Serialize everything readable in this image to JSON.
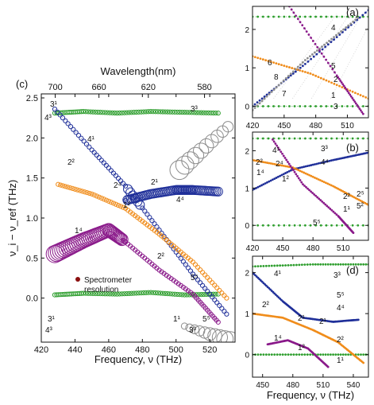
{
  "figure": {
    "wavelength_label": "Wavelength(nm)",
    "ylabel_main": "ν_i − ν_ref (THz)",
    "ylabel_parts": [
      "ν",
      "i",
      " - ν",
      "ref",
      " (THz)"
    ],
    "xlabel_c": "Frequency, ν (THz)",
    "xlabel_d": "Frequency, ν (THz)",
    "legend_text": [
      "Spectrometer",
      "resolution"
    ],
    "colors": {
      "green": "#2e9e2e",
      "blue": "#1f2f99",
      "orange": "#f08c1a",
      "purple": "#8a1a8a",
      "gray": "#8c8c8c",
      "legend_dot": "#8b0f0f"
    }
  },
  "chart_data": [
    {
      "panel": "(c)",
      "type": "scatter",
      "xlim": [
        420,
        535
      ],
      "ylim": [
        -0.55,
        2.55
      ],
      "x_ticks": [
        420,
        440,
        460,
        480,
        500,
        520
      ],
      "y_ticks": [
        0.0,
        0.5,
        1.0,
        1.5,
        2.0,
        2.5
      ],
      "y_tick_labels": [
        "0.0",
        "0.5",
        "1.0",
        "1.5",
        "2.0",
        "2.5"
      ],
      "top_axis": {
        "label": "Wavelength(nm)",
        "ticks": [
          700,
          660,
          620,
          580
        ]
      },
      "series": [
        {
          "color": "green",
          "points": [
            [
              428,
              0.04
            ],
            [
              445,
              0.06
            ],
            [
              465,
              0.05
            ],
            [
              485,
              0.07
            ],
            [
              505,
              0.04
            ],
            [
              525,
              0.05
            ]
          ]
        },
        {
          "color": "green",
          "points": [
            [
              428,
              2.31
            ],
            [
              445,
              2.33
            ],
            [
              465,
              2.31
            ],
            [
              485,
              2.33
            ],
            [
              505,
              2.32
            ],
            [
              525,
              2.31
            ]
          ]
        },
        {
          "color": "blue",
          "points": [
            [
              428,
              2.36
            ],
            [
              450,
              1.85
            ],
            [
              470,
              1.4
            ],
            [
              490,
              0.85
            ],
            [
              510,
              0.3
            ],
            [
              530,
              -0.2
            ]
          ]
        },
        {
          "color": "blue",
          "points": [
            [
              470,
              1.22
            ],
            [
              485,
              1.3
            ],
            [
              500,
              1.35
            ],
            [
              510,
              1.35
            ],
            [
              525,
              1.33
            ]
          ]
        },
        {
          "color": "orange",
          "points": [
            [
              430,
              1.42
            ],
            [
              450,
              1.3
            ],
            [
              470,
              1.12
            ],
            [
              490,
              0.8
            ],
            [
              510,
              0.45
            ],
            [
              530,
              0.0
            ]
          ]
        },
        {
          "color": "purple",
          "points": [
            [
              428,
              0.55
            ],
            [
              445,
              0.72
            ],
            [
              460,
              0.85
            ],
            [
              470,
              0.7
            ],
            [
              490,
              0.35
            ],
            [
              510,
              0.05
            ],
            [
              525,
              -0.3
            ]
          ]
        }
      ],
      "branch_labels": [
        "3¹",
        "4³",
        "4¹",
        "2²",
        "2⁴",
        "2¹",
        "4⁴",
        "1²",
        "1⁴",
        "2²",
        "3¹",
        "4³",
        "1¹",
        "3³",
        "3³",
        "5⁵",
        "5⁵"
      ],
      "legend": "Spectrometer resolution"
    },
    {
      "panel": "(a)",
      "type": "scatter",
      "xlim": [
        420,
        530
      ],
      "ylim": [
        -0.3,
        2.6
      ],
      "x_ticks": [
        420,
        450,
        480,
        510
      ],
      "y_ticks": [
        0,
        1,
        2
      ],
      "series": [
        {
          "color": "green",
          "points": [
            [
              420,
              2.33
            ],
            [
              530,
              2.33
            ]
          ]
        },
        {
          "color": "green",
          "points": [
            [
              420,
              0.0
            ],
            [
              530,
              0.0
            ]
          ]
        },
        {
          "color": "blue",
          "points": [
            [
              420,
              0.0
            ],
            [
              470,
              1.1
            ],
            [
              530,
              2.5
            ]
          ]
        },
        {
          "color": "orange",
          "points": [
            [
              420,
              1.3
            ],
            [
              475,
              0.85
            ],
            [
              530,
              0.2
            ]
          ]
        },
        {
          "color": "gray",
          "points": [
            [
              420,
              -0.1
            ],
            [
              470,
              1.2
            ],
            [
              520,
              2.3
            ]
          ]
        },
        {
          "color": "purple",
          "points": [
            [
              455,
              2.6
            ],
            [
              500,
              0.8
            ],
            [
              525,
              -0.2
            ]
          ]
        }
      ],
      "branch_labels": [
        "4",
        "6",
        "8",
        "7",
        "5",
        "2",
        "1",
        "3"
      ]
    },
    {
      "panel": "(b)",
      "type": "scatter",
      "xlim": [
        420,
        535
      ],
      "ylim": [
        -0.4,
        2.5
      ],
      "x_ticks": [
        420,
        450,
        480,
        510
      ],
      "y_ticks": [
        0,
        1,
        2
      ],
      "series": [
        {
          "color": "green",
          "points": [
            [
              420,
              2.33
            ],
            [
              535,
              2.33
            ]
          ]
        },
        {
          "color": "green",
          "points": [
            [
              420,
              0.0
            ],
            [
              535,
              0.0
            ]
          ]
        },
        {
          "color": "blue",
          "points": [
            [
              420,
              0.95
            ],
            [
              460,
              1.5
            ],
            [
              500,
              1.75
            ],
            [
              535,
              1.95
            ]
          ]
        },
        {
          "color": "orange",
          "points": [
            [
              420,
              1.75
            ],
            [
              460,
              1.55
            ],
            [
              500,
              1.05
            ],
            [
              535,
              0.55
            ]
          ]
        },
        {
          "color": "purple",
          "points": [
            [
              440,
              2.3
            ],
            [
              470,
              1.1
            ],
            [
              505,
              0.25
            ],
            [
              520,
              -0.2
            ]
          ]
        }
      ],
      "branch_labels": [
        "2²",
        "4¹",
        "2⁴",
        "1⁴",
        "1²",
        "3³",
        "4⁴",
        "2²",
        "2⁵",
        "5²",
        "1¹",
        "5⁵"
      ]
    },
    {
      "panel": "(d)",
      "type": "scatter",
      "xlim": [
        440,
        555
      ],
      "ylim": [
        -0.55,
        2.4
      ],
      "x_ticks": [
        450,
        480,
        510,
        540
      ],
      "y_ticks": [
        0,
        1,
        2
      ],
      "xlabel": "Frequency, ν (THz)",
      "series": [
        {
          "color": "green",
          "points": [
            [
              440,
              2.15
            ],
            [
              500,
              2.2
            ],
            [
              555,
              2.2
            ]
          ]
        },
        {
          "color": "green",
          "points": [
            [
              440,
              0.0
            ],
            [
              500,
              0.0
            ],
            [
              555,
              0.0
            ]
          ]
        },
        {
          "color": "blue",
          "points": [
            [
              440,
              2.0
            ],
            [
              470,
              1.3
            ],
            [
              490,
              0.9
            ],
            [
              520,
              0.8
            ],
            [
              545,
              0.85
            ]
          ]
        },
        {
          "color": "orange",
          "points": [
            [
              440,
              1.0
            ],
            [
              470,
              0.9
            ],
            [
              500,
              0.6
            ],
            [
              525,
              0.3
            ],
            [
              550,
              -0.2
            ]
          ]
        },
        {
          "color": "purple",
          "points": [
            [
              455,
              0.25
            ],
            [
              475,
              0.35
            ],
            [
              495,
              0.15
            ],
            [
              515,
              -0.3
            ]
          ]
        }
      ],
      "branch_labels": [
        "4¹",
        "2²",
        "3³",
        "5⁵",
        "2¹",
        "2¹",
        "4⁴",
        "2²",
        "1⁴",
        "1²",
        "1¹"
      ]
    }
  ]
}
